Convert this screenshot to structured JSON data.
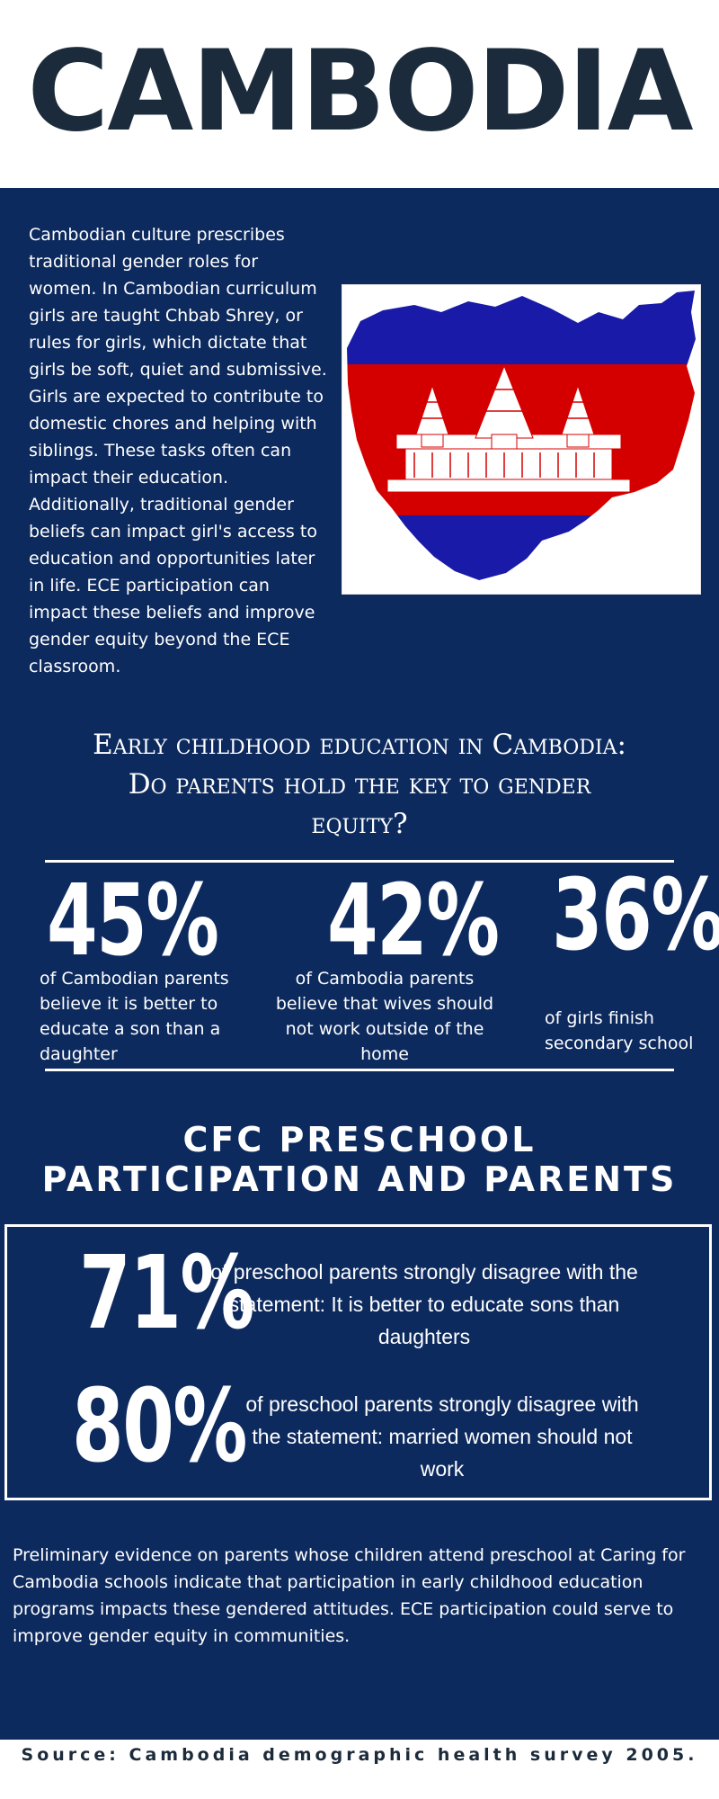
{
  "title": "CAMBODIA",
  "intro": "Cambodian culture prescribes traditional gender roles for women.  In Cambodian curriculum girls are taught Chbab Shrey, or rules for girls, which dictate that girls be soft, quiet and submissive.  Girls are expected to contribute to domestic chores and helping with siblings.  These tasks often can impact their education.  Additionally, traditional gender beliefs can impact girl's access to education and opportunities later in life.  ECE participation can impact these beliefs and improve gender equity beyond the ECE classroom.",
  "headline": {
    "line1": "Early childhood education in Cambodia:",
    "line2": "Do parents hold the key to gender",
    "line3": "equity?"
  },
  "stats": [
    {
      "value": "45%",
      "text": "of Cambodian parents believe it is better to educate a son than a daughter"
    },
    {
      "value": "42%",
      "text": "of Cambodia parents believe that wives should not work outside of the home"
    },
    {
      "value": "36%",
      "text": "of girls finish secondary school"
    }
  ],
  "cfc": {
    "title_line1": "CFC PRESCHOOL",
    "title_line2": "PARTICIPATION  AND PARENTS",
    "items": [
      {
        "value": "71%",
        "text": "of preschool parents strongly disagree with the statement: It is better to educate sons than daughters"
      },
      {
        "value": "80%",
        "text": "of preschool parents strongly disagree with the statement: married women should not work"
      }
    ]
  },
  "conclusion": "Preliminary evidence on parents whose children attend preschool at Caring for Cambodia schools indicate that participation in early childhood education programs impacts these gendered attitudes. ECE participation could serve to improve gender equity in communities.",
  "source": "Source: Cambodia demographic health survey 2005.",
  "colors": {
    "navy": "#0d2a5e",
    "title": "#1c2b3b",
    "flag_blue": "#1a1aa8",
    "flag_red": "#d40000"
  },
  "icons": {
    "flag": "cambodia-map-flag-icon"
  }
}
